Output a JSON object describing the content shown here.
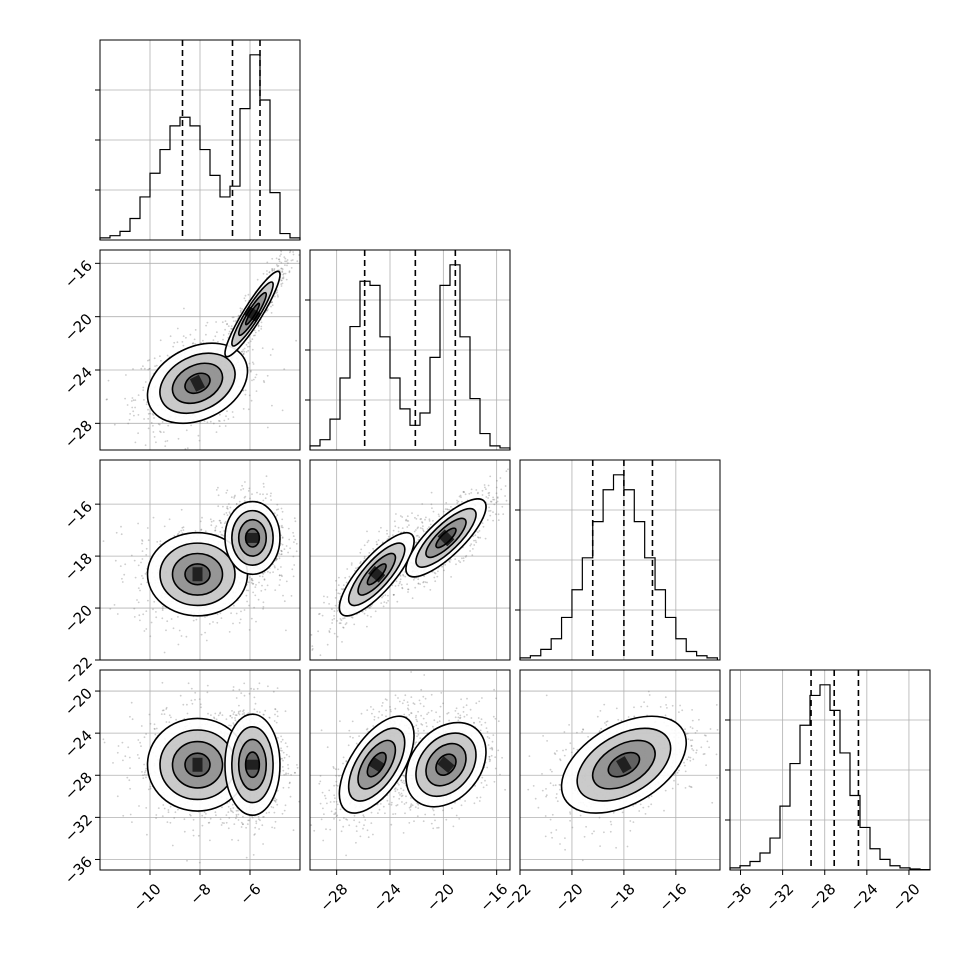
{
  "chart_data": {
    "type": "corner",
    "title": "",
    "parameters": [
      {
        "ticks": [
          -10,
          -8,
          -6
        ],
        "tick_labels": [
          "−10",
          "−8",
          "−6"
        ],
        "range": [
          -12,
          -4
        ],
        "quantiles": [
          -8.7,
          -6.7,
          -5.6
        ],
        "hist_edges": [
          -12,
          -11.6,
          -11.2,
          -10.8,
          -10.4,
          -10,
          -9.6,
          -9.2,
          -8.8,
          -8.4,
          -8,
          -7.6,
          -7.2,
          -6.8,
          -6.4,
          -6,
          -5.6,
          -5.2,
          -4.8,
          -4.4,
          -4
        ],
        "hist_counts": [
          0.01,
          0.02,
          0.04,
          0.1,
          0.2,
          0.31,
          0.42,
          0.53,
          0.57,
          0.53,
          0.42,
          0.3,
          0.2,
          0.25,
          0.61,
          0.86,
          0.65,
          0.22,
          0.03,
          0.01
        ]
      },
      {
        "ticks": [
          -28,
          -24,
          -20,
          -16
        ],
        "tick_labels": [
          "−28",
          "−24",
          "−20",
          "−16"
        ],
        "range": [
          -30,
          -15
        ],
        "quantiles": [
          -25.9,
          -22.1,
          -19.1
        ],
        "hist_edges": [
          -30,
          -29.25,
          -28.5,
          -27.75,
          -27,
          -26.25,
          -25.5,
          -24.75,
          -24,
          -23.25,
          -22.5,
          -21.75,
          -21,
          -20.25,
          -19.5,
          -18.75,
          -18,
          -17.25,
          -16.5,
          -15.75,
          -15
        ],
        "hist_counts": [
          0.02,
          0.05,
          0.15,
          0.35,
          0.6,
          0.82,
          0.8,
          0.55,
          0.35,
          0.2,
          0.12,
          0.18,
          0.45,
          0.8,
          0.9,
          0.55,
          0.25,
          0.08,
          0.02,
          0.01
        ]
      },
      {
        "ticks": [
          -16,
          -18,
          -20,
          -22
        ],
        "tick_labels": [
          "−16",
          "−18",
          "−20",
          "−22"
        ],
        "range": [
          -22,
          -14.3
        ],
        "quantiles": [
          -19.2,
          -18.0,
          -16.9
        ],
        "hist_edges": [
          -22,
          -21.6,
          -21.2,
          -20.8,
          -20.4,
          -20,
          -19.6,
          -19.2,
          -18.8,
          -18.4,
          -18,
          -17.6,
          -17.2,
          -16.8,
          -16.4,
          -16,
          -15.6,
          -15.2,
          -14.8,
          -14.4
        ],
        "hist_counts": [
          0.01,
          0.02,
          0.05,
          0.1,
          0.2,
          0.33,
          0.48,
          0.65,
          0.8,
          0.87,
          0.8,
          0.65,
          0.48,
          0.33,
          0.2,
          0.1,
          0.04,
          0.02,
          0.01
        ]
      },
      {
        "ticks": [
          -36,
          -32,
          -28,
          -24,
          -20
        ],
        "tick_labels": [
          "−36",
          "−32",
          "−28",
          "−24",
          "−20"
        ],
        "range": [
          -37,
          -18
        ],
        "quantiles": [
          -29.3,
          -27.1,
          -24.8
        ],
        "hist_edges": [
          -37,
          -36.05,
          -35.1,
          -34.15,
          -33.2,
          -32.25,
          -31.3,
          -30.35,
          -29.4,
          -28.45,
          -27.5,
          -26.55,
          -25.6,
          -24.65,
          -23.7,
          -22.75,
          -21.8,
          -20.85,
          -19.9,
          -18.95,
          -18
        ],
        "hist_counts": [
          0.01,
          0.02,
          0.04,
          0.08,
          0.15,
          0.3,
          0.5,
          0.68,
          0.82,
          0.87,
          0.75,
          0.55,
          0.35,
          0.2,
          0.1,
          0.05,
          0.02,
          0.01,
          0.005,
          0.002
        ]
      }
    ],
    "pairs": [
      {
        "x": 0,
        "y": 1,
        "modes": [
          [
            -8.1,
            -25.0,
            1.0,
            1.5,
            0.3
          ],
          [
            -5.9,
            -19.8,
            0.55,
            1.6,
            0.92
          ]
        ]
      },
      {
        "x": 0,
        "y": 2,
        "modes": [
          [
            -8.1,
            -18.7,
            1.0,
            0.8,
            0.0
          ],
          [
            -5.9,
            -17.3,
            0.55,
            0.7,
            0.0
          ]
        ]
      },
      {
        "x": 1,
        "y": 2,
        "modes": [
          [
            -25.0,
            -18.7,
            1.4,
            0.8,
            0.8
          ],
          [
            -19.8,
            -17.3,
            1.5,
            0.75,
            0.8
          ]
        ]
      },
      {
        "x": 0,
        "y": 3,
        "modes": [
          [
            -8.1,
            -27.0,
            1.0,
            2.2,
            0.0
          ],
          [
            -5.9,
            -27.0,
            0.55,
            2.4,
            0.0
          ]
        ]
      },
      {
        "x": 1,
        "y": 3,
        "modes": [
          [
            -25.0,
            -27.0,
            1.4,
            2.3,
            0.6
          ],
          [
            -19.8,
            -27.0,
            1.5,
            2.0,
            0.3
          ]
        ]
      },
      {
        "x": 2,
        "y": 3,
        "modes": [
          [
            -18.0,
            -27.0,
            1.2,
            2.3,
            0.45
          ]
        ]
      }
    ]
  }
}
